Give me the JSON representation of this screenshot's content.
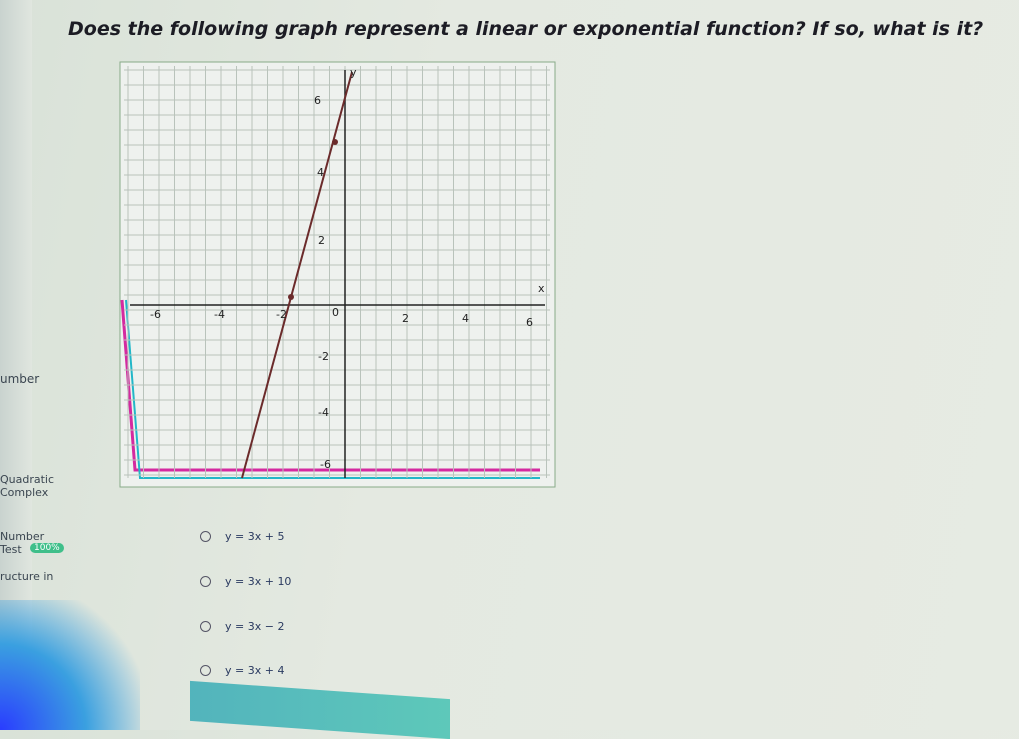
{
  "question": "Does the following graph represent a linear or exponential function? If so, what is it?",
  "graph": {
    "x_axis": "x",
    "y_axis": "y",
    "x_labels": [
      "-6",
      "-4",
      "-2",
      "0",
      "2",
      "4",
      "6"
    ],
    "y_labels": [
      "6",
      "4",
      "2",
      "-2",
      "-4",
      "-6"
    ]
  },
  "options": [
    "y = 3x + 5",
    "y = 3x + 10",
    "y = 3x − 2",
    "y = 3x + 4"
  ],
  "sidebar": [
    "umber",
    "Quadratic",
    "Complex",
    "Number",
    "Test",
    "100%",
    "ructure in"
  ]
}
